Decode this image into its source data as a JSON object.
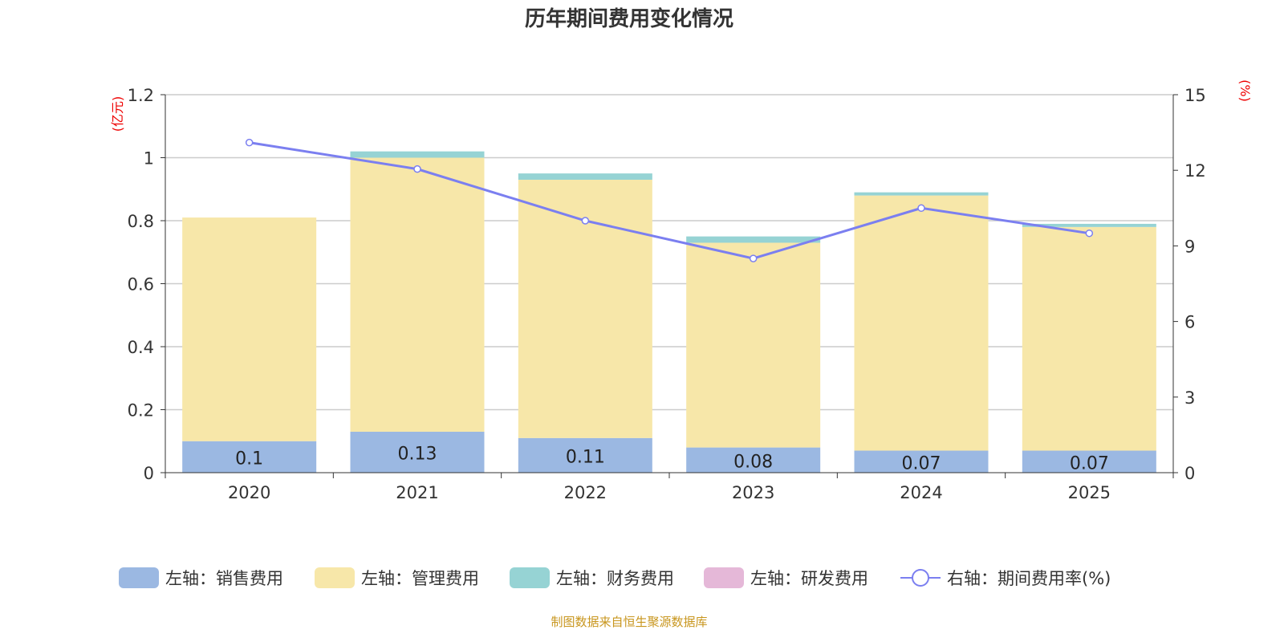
{
  "chart_data": {
    "type": "bar",
    "title": "历年期间费用变化情况",
    "categories": [
      "2020",
      "2021",
      "2022",
      "2023",
      "2024",
      "2025"
    ],
    "left_axis": {
      "unit_label": "(亿元)",
      "ylim": [
        0,
        1.2
      ],
      "ticks": [
        "0",
        "0.2",
        "0.4",
        "0.6",
        "0.8",
        "1",
        "1.2"
      ]
    },
    "right_axis": {
      "unit_label": "(%)",
      "ylim": [
        0,
        15
      ],
      "ticks": [
        "0",
        "3",
        "6",
        "9",
        "12",
        "15"
      ]
    },
    "series": [
      {
        "name": "左轴：销售费用",
        "color": "#9bb8e2",
        "axis": "left",
        "values": [
          0.1,
          0.13,
          0.11,
          0.08,
          0.07,
          0.07
        ],
        "labels": [
          "0.1",
          "0.13",
          "0.11",
          "0.08",
          "0.07",
          "0.07"
        ]
      },
      {
        "name": "左轴：管理费用",
        "color": "#f7e7a9",
        "axis": "left",
        "values": [
          0.71,
          0.87,
          0.82,
          0.65,
          0.81,
          0.71
        ]
      },
      {
        "name": "左轴：财务费用",
        "color": "#96d3d4",
        "axis": "left",
        "values": [
          0.0,
          0.02,
          0.02,
          0.02,
          0.01,
          0.01
        ]
      },
      {
        "name": "左轴：研发费用",
        "color": "#e5b8d8",
        "axis": "left",
        "values": [
          0,
          0,
          0,
          0,
          0,
          0
        ]
      },
      {
        "name": "右轴：期间费用率(%)",
        "color": "#7b7ff0",
        "axis": "right",
        "type": "line",
        "values": [
          13.1,
          12.05,
          10.0,
          8.5,
          10.5,
          9.5
        ]
      }
    ],
    "legend_position": "bottom",
    "grid": true
  },
  "footer": "制图数据来自恒生聚源数据库"
}
